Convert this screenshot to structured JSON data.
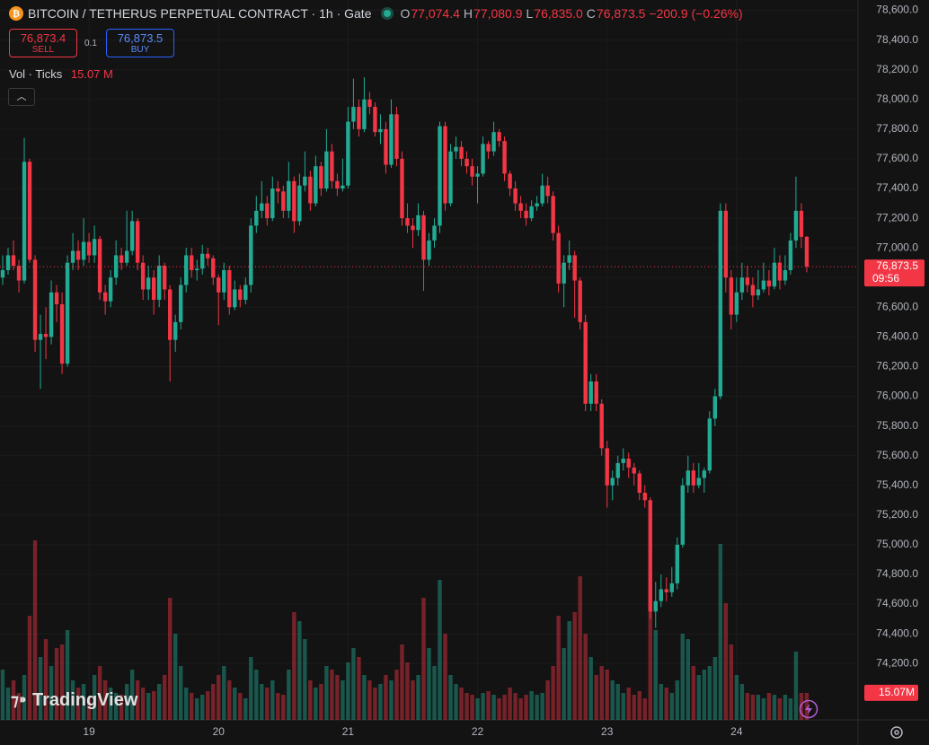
{
  "header": {
    "title": "BITCOIN / TETHERUS PERPETUAL CONTRACT · 1h · Gate",
    "ohlc": [
      {
        "key": "O",
        "label": "77,074.4"
      },
      {
        "key": "H",
        "label": "77,080.9"
      },
      {
        "key": "L",
        "label": "76,835.0"
      },
      {
        "key": "C",
        "label": "76,873.5"
      }
    ],
    "change": "−200.9 (−0.26%)"
  },
  "trade": {
    "sell_price": "76,873.4",
    "sell": "SELL",
    "spread": "0.1",
    "buy_price": "76,873.5",
    "buy": "BUY"
  },
  "indicator": {
    "name": "Vol · Ticks",
    "value": "15.07 M"
  },
  "logo": "TradingView",
  "chart_data": {
    "type": "candlestick",
    "up_color": "#22ab94",
    "down_color": "#f23645",
    "grid": true,
    "ylim": [
      73820,
      78670
    ],
    "xlim": [
      0,
      159
    ],
    "volume_ylim": [
      0,
      110
    ],
    "yticks": [
      {
        "value": 78600,
        "label": "78,600.0"
      },
      {
        "value": 78400,
        "label": "78,400.0"
      },
      {
        "value": 78200,
        "label": "78,200.0"
      },
      {
        "value": 78000,
        "label": "78,000.0"
      },
      {
        "value": 77800,
        "label": "77,800.0"
      },
      {
        "value": 77600,
        "label": "77,600.0"
      },
      {
        "value": 77400,
        "label": "77,400.0"
      },
      {
        "value": 77200,
        "label": "77,200.0"
      },
      {
        "value": 77000,
        "label": "77,000.0"
      },
      {
        "value": 76800,
        "label": "76,800.0"
      },
      {
        "value": 76600,
        "label": "76,600.0"
      },
      {
        "value": 76400,
        "label": "76,400.0"
      },
      {
        "value": 76200,
        "label": "76,200.0"
      },
      {
        "value": 76000,
        "label": "76,000.0"
      },
      {
        "value": 75800,
        "label": "75,800.0"
      },
      {
        "value": 75600,
        "label": "75,600.0"
      },
      {
        "value": 75400,
        "label": "75,400.0"
      },
      {
        "value": 75200,
        "label": "75,200.0"
      },
      {
        "value": 75000,
        "label": "75,000.0"
      },
      {
        "value": 74800,
        "label": "74,800.0"
      },
      {
        "value": 74600,
        "label": "74,600.0"
      },
      {
        "value": 74400,
        "label": "74,400.0"
      },
      {
        "value": 74200,
        "label": "74,200.0"
      }
    ],
    "xticks": [
      {
        "value": 16,
        "label": "19"
      },
      {
        "value": 40,
        "label": "20"
      },
      {
        "value": 64,
        "label": "21"
      },
      {
        "value": 88,
        "label": "22"
      },
      {
        "value": 112,
        "label": "23"
      },
      {
        "value": 136,
        "label": "24"
      }
    ],
    "last_price": {
      "value": 76873.5,
      "label": "76,873.5"
    },
    "countdown": "09:56",
    "volume_label": "15.07M",
    "candles": [
      [
        76800,
        76950,
        76750,
        76850
      ],
      [
        76850,
        77000,
        76820,
        76950
      ],
      [
        76950,
        77050,
        76850,
        76880
      ],
      [
        76880,
        76920,
        76700,
        76780
      ],
      [
        76780,
        77740,
        76760,
        77580
      ],
      [
        77580,
        77600,
        76900,
        76920
      ],
      [
        76920,
        76950,
        76300,
        76380
      ],
      [
        76380,
        76550,
        76050,
        76420
      ],
      [
        76420,
        76600,
        76250,
        76400
      ],
      [
        76400,
        76780,
        76350,
        76700
      ],
      [
        76700,
        76750,
        76500,
        76620
      ],
      [
        76620,
        76700,
        76150,
        76220
      ],
      [
        76220,
        76950,
        76200,
        76900
      ],
      [
        76900,
        77100,
        76850,
        76980
      ],
      [
        76980,
        77050,
        76850,
        76920
      ],
      [
        76920,
        77200,
        76880,
        77040
      ],
      [
        77040,
        77100,
        76900,
        76950
      ],
      [
        76950,
        77150,
        76900,
        77060
      ],
      [
        77060,
        77080,
        76650,
        76700
      ],
      [
        76700,
        76750,
        76550,
        76640
      ],
      [
        76640,
        76850,
        76600,
        76800
      ],
      [
        76800,
        77050,
        76750,
        76950
      ],
      [
        76950,
        77000,
        76850,
        76900
      ],
      [
        76900,
        77250,
        76880,
        76980
      ],
      [
        76980,
        77250,
        76950,
        77180
      ],
      [
        77180,
        77200,
        76850,
        76900
      ],
      [
        76900,
        76950,
        76650,
        76720
      ],
      [
        76720,
        76880,
        76650,
        76800
      ],
      [
        76800,
        76850,
        76550,
        76650
      ],
      [
        76650,
        76950,
        76600,
        76880
      ],
      [
        76880,
        76900,
        76650,
        76720
      ],
      [
        76720,
        76750,
        76100,
        76380
      ],
      [
        76380,
        76550,
        76300,
        76500
      ],
      [
        76500,
        76800,
        76450,
        76750
      ],
      [
        76750,
        77000,
        76700,
        76950
      ],
      [
        76950,
        77000,
        76800,
        76850
      ],
      [
        76850,
        76920,
        76780,
        76860
      ],
      [
        76860,
        77020,
        76820,
        76960
      ],
      [
        76960,
        77000,
        76880,
        76930
      ],
      [
        76930,
        76950,
        76750,
        76800
      ],
      [
        76800,
        76820,
        76480,
        76700
      ],
      [
        76700,
        76900,
        76650,
        76850
      ],
      [
        76850,
        76880,
        76550,
        76600
      ],
      [
        76600,
        76780,
        76580,
        76720
      ],
      [
        76720,
        76750,
        76600,
        76650
      ],
      [
        76650,
        76800,
        76620,
        76750
      ],
      [
        76750,
        77200,
        76700,
        77150
      ],
      [
        77150,
        77350,
        77100,
        77250
      ],
      [
        77250,
        77450,
        77200,
        77300
      ],
      [
        77300,
        77350,
        77150,
        77200
      ],
      [
        77200,
        77480,
        77180,
        77400
      ],
      [
        77400,
        77450,
        77300,
        77380
      ],
      [
        77380,
        77420,
        77200,
        77250
      ],
      [
        77250,
        77580,
        77200,
        77450
      ],
      [
        77450,
        77480,
        77100,
        77180
      ],
      [
        77180,
        77500,
        77150,
        77420
      ],
      [
        77420,
        77650,
        77380,
        77480
      ],
      [
        77480,
        77520,
        77250,
        77300
      ],
      [
        77300,
        77620,
        77280,
        77550
      ],
      [
        77550,
        77580,
        77350,
        77400
      ],
      [
        77400,
        77800,
        77380,
        77650
      ],
      [
        77650,
        77700,
        77400,
        77450
      ],
      [
        77450,
        77500,
        77350,
        77400
      ],
      [
        77400,
        77600,
        77380,
        77420
      ],
      [
        77420,
        77950,
        77400,
        77850
      ],
      [
        77850,
        78140,
        77800,
        77950
      ],
      [
        77950,
        78000,
        77750,
        77800
      ],
      [
        77800,
        78150,
        77780,
        78000
      ],
      [
        78000,
        78050,
        77900,
        77950
      ],
      [
        77950,
        77980,
        77750,
        77780
      ],
      [
        77780,
        77900,
        77700,
        77800
      ],
      [
        77800,
        77850,
        77500,
        77560
      ],
      [
        77560,
        78000,
        77540,
        77900
      ],
      [
        77900,
        77950,
        77550,
        77600
      ],
      [
        77600,
        77650,
        77150,
        77200
      ],
      [
        77200,
        77300,
        77100,
        77150
      ],
      [
        77150,
        77200,
        77000,
        77120
      ],
      [
        77120,
        77300,
        77080,
        77220
      ],
      [
        77220,
        77250,
        76710,
        76920
      ],
      [
        76920,
        77100,
        76880,
        77050
      ],
      [
        77050,
        77200,
        77000,
        77150
      ],
      [
        77150,
        77850,
        77100,
        77820
      ],
      [
        77820,
        77850,
        77250,
        77300
      ],
      [
        77300,
        77700,
        77280,
        77650
      ],
      [
        77650,
        77750,
        77600,
        77680
      ],
      [
        77680,
        77720,
        77550,
        77600
      ],
      [
        77600,
        77650,
        77500,
        77550
      ],
      [
        77550,
        77600,
        77420,
        77480
      ],
      [
        77480,
        77550,
        77300,
        77500
      ],
      [
        77500,
        77750,
        77480,
        77700
      ],
      [
        77700,
        77720,
        77600,
        77650
      ],
      [
        77650,
        77850,
        77620,
        77780
      ],
      [
        77780,
        77800,
        77680,
        77720
      ],
      [
        77720,
        77750,
        77450,
        77500
      ],
      [
        77500,
        77520,
        77350,
        77400
      ],
      [
        77400,
        77450,
        77250,
        77300
      ],
      [
        77300,
        77350,
        77200,
        77250
      ],
      [
        77250,
        77300,
        77150,
        77200
      ],
      [
        77200,
        77320,
        77180,
        77280
      ],
      [
        77280,
        77350,
        77250,
        77300
      ],
      [
        77300,
        77500,
        77280,
        77420
      ],
      [
        77420,
        77480,
        77300,
        77350
      ],
      [
        77350,
        77380,
        77050,
        77100
      ],
      [
        77100,
        77150,
        76700,
        76760
      ],
      [
        76760,
        76950,
        76600,
        76900
      ],
      [
        76900,
        77050,
        76850,
        76950
      ],
      [
        76950,
        76980,
        76530,
        76780
      ],
      [
        76780,
        76800,
        76450,
        76500
      ],
      [
        76500,
        76550,
        75900,
        75950
      ],
      [
        75950,
        76150,
        75900,
        76100
      ],
      [
        76100,
        76150,
        75900,
        75950
      ],
      [
        75950,
        75980,
        75600,
        75650
      ],
      [
        75650,
        75700,
        75250,
        75400
      ],
      [
        75400,
        75500,
        75300,
        75450
      ],
      [
        75450,
        75600,
        75400,
        75550
      ],
      [
        75550,
        75650,
        75500,
        75580
      ],
      [
        75580,
        75620,
        75450,
        75520
      ],
      [
        75520,
        75550,
        75400,
        75480
      ],
      [
        75480,
        75500,
        75300,
        75350
      ],
      [
        75350,
        75400,
        75250,
        75300
      ],
      [
        75300,
        75320,
        74500,
        74550
      ],
      [
        74550,
        74750,
        74440,
        74620
      ],
      [
        74620,
        74800,
        74580,
        74700
      ],
      [
        74700,
        74780,
        74620,
        74680
      ],
      [
        74680,
        74850,
        74650,
        74740
      ],
      [
        74740,
        75050,
        74700,
        75000
      ],
      [
        75000,
        75450,
        74980,
        75400
      ],
      [
        75400,
        75600,
        75350,
        75500
      ],
      [
        75500,
        75550,
        75350,
        75400
      ],
      [
        75400,
        75550,
        75380,
        75450
      ],
      [
        75450,
        75520,
        75350,
        75500
      ],
      [
        75500,
        75900,
        75480,
        75850
      ],
      [
        75850,
        76050,
        75800,
        76000
      ],
      [
        76000,
        77300,
        75980,
        77250
      ],
      [
        77250,
        77300,
        76700,
        76800
      ],
      [
        76800,
        76850,
        76450,
        76550
      ],
      [
        76550,
        76800,
        76500,
        76700
      ],
      [
        76700,
        76900,
        76650,
        76800
      ],
      [
        76800,
        76880,
        76700,
        76750
      ],
      [
        76750,
        76800,
        76600,
        76680
      ],
      [
        76680,
        76850,
        76650,
        76720
      ],
      [
        76720,
        76900,
        76700,
        76780
      ],
      [
        76780,
        76850,
        76680,
        76740
      ],
      [
        76740,
        77000,
        76720,
        76900
      ],
      [
        76900,
        76950,
        76720,
        76780
      ],
      [
        76780,
        76950,
        76750,
        76850
      ],
      [
        76850,
        77100,
        76820,
        77050
      ],
      [
        77050,
        77480,
        77000,
        77250
      ],
      [
        77250,
        77300,
        77000,
        77074.4
      ],
      [
        77074.4,
        77080.9,
        76835.0,
        76873.5
      ]
    ],
    "volume": [
      28,
      18,
      22,
      15,
      25,
      58,
      100,
      35,
      45,
      30,
      40,
      42,
      50,
      22,
      18,
      20,
      12,
      25,
      30,
      22,
      18,
      15,
      14,
      20,
      28,
      22,
      18,
      15,
      16,
      20,
      25,
      68,
      48,
      30,
      18,
      15,
      12,
      14,
      16,
      20,
      25,
      30,
      22,
      18,
      15,
      12,
      35,
      28,
      20,
      18,
      22,
      15,
      14,
      28,
      60,
      55,
      45,
      22,
      18,
      20,
      30,
      28,
      25,
      22,
      32,
      40,
      35,
      25,
      22,
      18,
      20,
      25,
      22,
      28,
      42,
      32,
      22,
      25,
      68,
      40,
      30,
      78,
      48,
      25,
      20,
      18,
      15,
      14,
      12,
      15,
      16,
      14,
      12,
      14,
      18,
      15,
      12,
      14,
      16,
      14,
      15,
      22,
      30,
      58,
      40,
      55,
      60,
      80,
      48,
      35,
      25,
      30,
      28,
      22,
      20,
      15,
      18,
      14,
      16,
      12,
      70,
      50,
      20,
      18,
      15,
      22,
      48,
      45,
      30,
      25,
      28,
      30,
      35,
      98,
      65,
      42,
      25,
      20,
      15,
      14,
      14,
      12,
      15,
      14,
      12,
      14,
      12,
      38,
      15,
      15.07
    ]
  }
}
